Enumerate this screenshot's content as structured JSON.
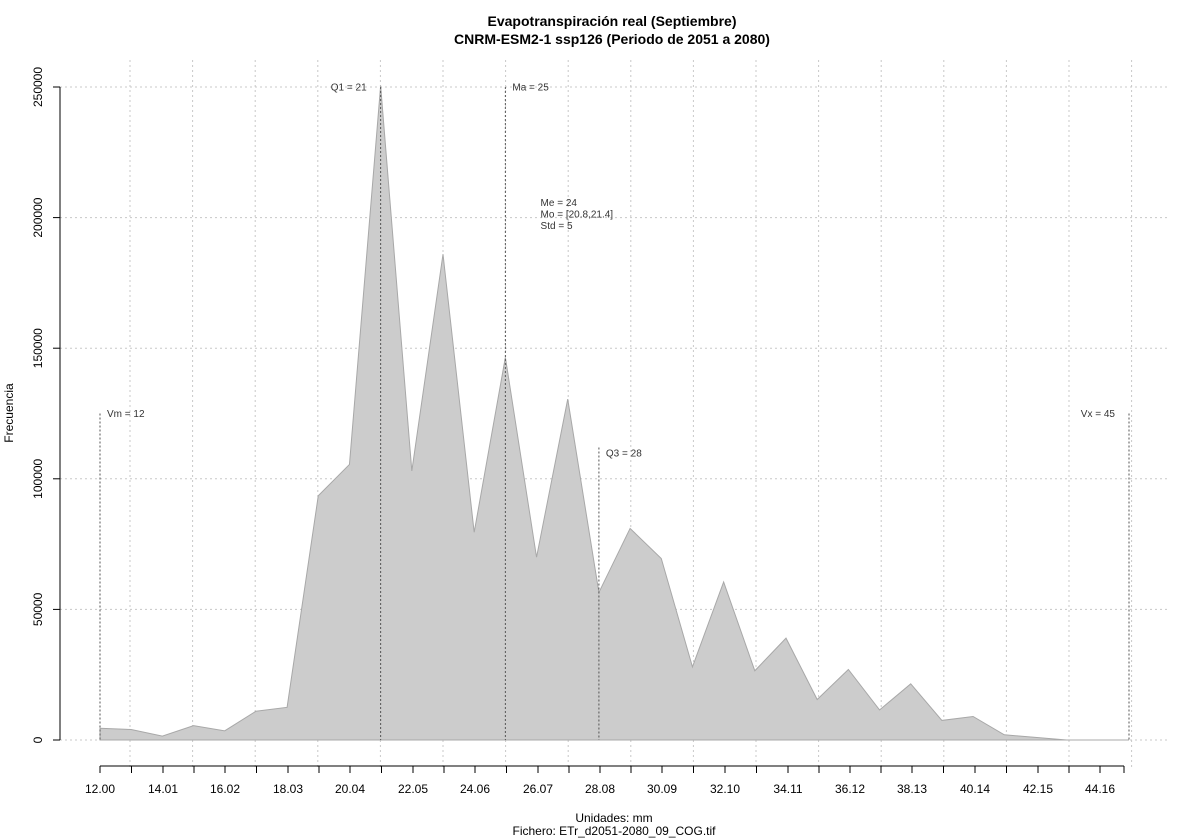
{
  "chart_data": {
    "type": "area",
    "title": "Evapotranspiración real (Septiembre)",
    "subtitle": "CNRM-ESM2-1 ssp126 (Periodo de 2051 a 2080)",
    "xlabel": "Unidades: mm",
    "ylabel": "Frecuencia",
    "caption": "Fichero: ETr_d2051-2080_09_COG.tif",
    "grid": true,
    "xlim": [
      12.0,
      45.0
    ],
    "ylim": [
      0,
      250000
    ],
    "x_ticks": [
      12.0,
      14.01,
      16.02,
      18.03,
      20.04,
      22.05,
      24.06,
      26.07,
      28.08,
      30.09,
      32.1,
      34.11,
      36.12,
      38.13,
      40.14,
      42.15,
      44.16
    ],
    "x_tick_labels": [
      "12.00",
      "14.01",
      "16.02",
      "18.03",
      "20.04",
      "22.05",
      "24.06",
      "26.07",
      "28.08",
      "30.09",
      "32.10",
      "34.11",
      "36.12",
      "38.13",
      "40.14",
      "42.15",
      "44.16"
    ],
    "y_ticks": [
      0,
      50000,
      100000,
      150000,
      200000,
      250000
    ],
    "y_tick_labels": [
      "0",
      "50000",
      "100000",
      "150000",
      "200000",
      "250000"
    ],
    "x": [
      12.0,
      13.0,
      14.0,
      15.0,
      16.0,
      17.0,
      18.0,
      19.0,
      20.0,
      21.0,
      22.0,
      23.0,
      24.0,
      25.0,
      26.0,
      27.0,
      28.0,
      29.0,
      30.0,
      31.0,
      32.0,
      33.0,
      34.0,
      35.0,
      36.0,
      37.0,
      38.0,
      39.0,
      40.0,
      41.0,
      42.0,
      43.0,
      44.0,
      45.0
    ],
    "values": [
      4500,
      4000,
      1500,
      5500,
      3500,
      11000,
      12500,
      93500,
      105500,
      250500,
      103000,
      186000,
      79500,
      146500,
      70000,
      130500,
      56500,
      81000,
      69500,
      28000,
      60500,
      26500,
      39000,
      15500,
      27000,
      11500,
      21500,
      7500,
      9000,
      2000,
      1000,
      0,
      0,
      0
    ],
    "annotations": [
      {
        "label": "Vm = 12",
        "x": 12.0,
        "line_top": 125000,
        "text_y": 124000,
        "anchor": "start"
      },
      {
        "label": "Q1 = 21",
        "x": 21.0,
        "line_top": 250000,
        "text_y": 249000,
        "anchor": "end"
      },
      {
        "label": "Ma = 25",
        "x": 25.0,
        "line_top": 250000,
        "text_y": 249000,
        "anchor": "start"
      },
      {
        "label": "Q3 = 28",
        "x": 28.0,
        "line_top": 112000,
        "text_y": 109000,
        "anchor": "start"
      },
      {
        "label": "Vx = 45",
        "x": 45.0,
        "line_top": 125000,
        "text_y": 124000,
        "anchor": "end"
      }
    ],
    "stats_text": [
      "Me = 24",
      "Mo = [20.8,21.4]",
      "Std = 5"
    ]
  }
}
